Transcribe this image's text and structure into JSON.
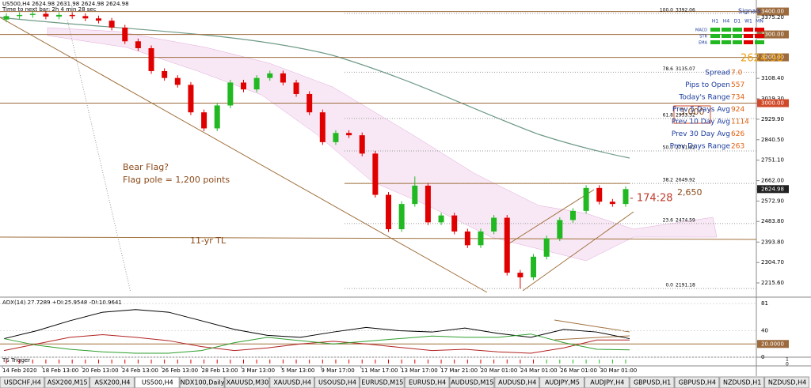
{
  "header": {
    "symbol_line": "US500,H4  2624.98 2631.98 2624.98 2624.98",
    "timer": "Time to next bar: 2h 4 min 28 sec"
  },
  "chart_data": [
    {
      "type": "candlestick",
      "open": [
        3365,
        3380,
        3385,
        3390,
        3378,
        3385,
        3380,
        3370,
        3360,
        3330,
        3270,
        3240,
        3140,
        3110,
        3080,
        2960,
        2890,
        2990,
        3090,
        3060,
        3110,
        3130,
        3090,
        3040,
        2960,
        2830,
        2870,
        2860,
        2780,
        2600,
        2450,
        2560,
        2640,
        2480,
        2510,
        2440,
        2380,
        2440,
        2500,
        2260,
        2240,
        2330,
        2410,
        2490,
        2530,
        2630,
        2570,
        2560
      ],
      "high": [
        3392,
        3397,
        3402,
        3402,
        3397,
        3397,
        3392,
        3382,
        3372,
        3342,
        3282,
        3252,
        3152,
        3122,
        3092,
        2972,
        3002,
        3102,
        3102,
        3122,
        3142,
        3142,
        3102,
        3052,
        2972,
        2882,
        2882,
        2872,
        2792,
        2612,
        2572,
        2680,
        2652,
        2522,
        2522,
        2452,
        2452,
        2512,
        2512,
        2272,
        2342,
        2422,
        2502,
        2542,
        2642,
        2642,
        2582,
        2637
      ],
      "low": [
        3353,
        3368,
        3373,
        3366,
        3366,
        3368,
        3358,
        3348,
        3318,
        3258,
        3228,
        3128,
        3098,
        3068,
        2948,
        2878,
        2878,
        2978,
        3048,
        3048,
        3098,
        3078,
        3028,
        2948,
        2818,
        2818,
        2848,
        2768,
        2588,
        2438,
        2438,
        2548,
        2468,
        2468,
        2428,
        2368,
        2368,
        2428,
        2248,
        2191,
        2228,
        2318,
        2398,
        2478,
        2518,
        2558,
        2548,
        2548
      ],
      "close": [
        3380,
        3385,
        3390,
        3378,
        3385,
        3380,
        3370,
        3360,
        3330,
        3270,
        3240,
        3140,
        3110,
        3080,
        2960,
        2890,
        2990,
        3090,
        3060,
        3110,
        3130,
        3090,
        3040,
        2960,
        2830,
        2870,
        2860,
        2780,
        2600,
        2450,
        2560,
        2640,
        2480,
        2510,
        2440,
        2380,
        2440,
        2500,
        2260,
        2240,
        2330,
        2410,
        2490,
        2530,
        2630,
        2570,
        2560,
        2625
      ],
      "up_color": "#22b822",
      "down_color": "#e00000",
      "ylim": [
        2157,
        3433
      ],
      "yticks": [
        {
          "value": 3400,
          "label": "3400.00"
        },
        {
          "value": 3375.2,
          "label": "3375.20"
        },
        {
          "value": 3300,
          "label": "3300.00"
        },
        {
          "value": 3200,
          "label": "3200.00"
        },
        {
          "value": 3108.4,
          "label": "3108.40"
        },
        {
          "value": 3019.3,
          "label": "3019.30"
        },
        {
          "value": 3000,
          "label": "3000.00"
        },
        {
          "value": 2929.9,
          "label": "2929.90"
        },
        {
          "value": 2840.5,
          "label": "2840.50"
        },
        {
          "value": 2751.1,
          "label": "2751.10"
        },
        {
          "value": 2662,
          "label": "2662.00"
        },
        2624.98,
        {
          "value": 2572.9,
          "label": "2572.90"
        },
        {
          "value": 2483.8,
          "label": "2483.80"
        },
        {
          "value": 2393.8,
          "label": "2393.80"
        },
        {
          "value": 2304.7,
          "label": "2304.70"
        },
        {
          "value": 2215.6,
          "label": "2215.60"
        }
      ],
      "levels": [
        3400,
        3300,
        3200,
        3000
      ],
      "level_color": "#9c6a3c",
      "fib": [
        {
          "level": "100.0",
          "price": 3392.06
        },
        {
          "level": "78.6",
          "price": 3135.07
        },
        {
          "level": "61.8",
          "price": 2933.32
        },
        {
          "level": "50.0",
          "price": 2791.62
        },
        {
          "level": "38.2",
          "price": 2649.92
        },
        {
          "level": "23.6",
          "price": 2474.59
        },
        {
          "level": "0.0",
          "price": 2191.18
        }
      ],
      "annotations": {
        "bear_flag": "Bear Flag?",
        "flag_pole": "Flag pole = 1,200 points",
        "trendline": "11-yr TL",
        "level_3000": "3,000",
        "level_2650": "2,650",
        "countdown": "- 174:28"
      },
      "x_labels": [
        "14 Feb 2020",
        "18 Feb 13:00",
        "20 Feb 13:00",
        "24 Feb 13:00",
        "26 Feb 13:00",
        "28 Feb 13:00",
        "3 Mar 13:00",
        "5 Mar 13:00",
        "9 Mar 17:00",
        "11 Mar 17:00",
        "13 Mar 17:00",
        "17 Mar 21:00",
        "20 Mar 01:00",
        "24 Mar 01:00",
        "26 Mar 01:00",
        "30 Mar 01:00"
      ]
    },
    {
      "type": "line",
      "title": "ADX(14) 27.7289 +DI:25.9548 -DI:10.9641",
      "ylim": [
        0,
        86
      ],
      "yticks": [
        81,
        40,
        {
          "value": 20,
          "label": "20.0000"
        },
        0
      ],
      "series": [
        {
          "color": "#000000",
          "values": [
            28,
            40,
            55,
            68,
            72,
            68,
            55,
            42,
            33,
            30,
            38,
            45,
            40,
            38,
            44,
            36,
            30,
            42,
            38,
            28
          ]
        },
        {
          "color": "#b22222",
          "values": [
            10,
            20,
            30,
            34,
            30,
            25,
            16,
            10,
            14,
            20,
            24,
            20,
            15,
            10,
            12,
            8,
            6,
            14,
            26,
            26
          ]
        },
        {
          "color": "#2e9e2e",
          "values": [
            28,
            18,
            12,
            8,
            6,
            6,
            10,
            22,
            30,
            25,
            20,
            24,
            28,
            32,
            30,
            30,
            35,
            22,
            12,
            11
          ]
        }
      ]
    }
  ],
  "ts": {
    "title": "TS Trigger",
    "yticks": [
      1,
      0
    ]
  },
  "info": {
    "title": "Signals",
    "timeframes": [
      "H1",
      "H4",
      "D1",
      "W1",
      "MN"
    ],
    "indicators": [
      "MACD",
      "STR",
      "EMA"
    ],
    "price": 2624.98,
    "rows": [
      {
        "label": "Spread",
        "value": "7.0"
      },
      {
        "label": "Pips to Open",
        "value": 557
      },
      {
        "label": "Today's Range",
        "value": 734
      },
      {
        "label": "Prev 5 Days Avg",
        "value": 924
      },
      {
        "label": "Prev 10 Day Avg",
        "value": 1114
      },
      {
        "label": "Prev 30 Day Avg",
        "value": 626
      },
      {
        "label": "Prev Days Range",
        "value": 263
      }
    ]
  },
  "tabs": {
    "items": [
      "USDCHF,H4",
      "ASX200,M15",
      "ASX200,H4",
      "US500,H4",
      "NDX100,Daily",
      "XAUUSD,M30",
      "XAUUSD,H4",
      "USOUSD,H4",
      "EURUSD,M15",
      "EURUSD,H4",
      "AUDUSD,M15",
      "AUDUSD,H4",
      "AUDJPY,M5",
      "AUDJPY,H4",
      "GBPUSD,H1",
      "GBPUSD,H4",
      "NZDUSD,H1",
      "NZDUSD,H4"
    ],
    "active": 3
  }
}
